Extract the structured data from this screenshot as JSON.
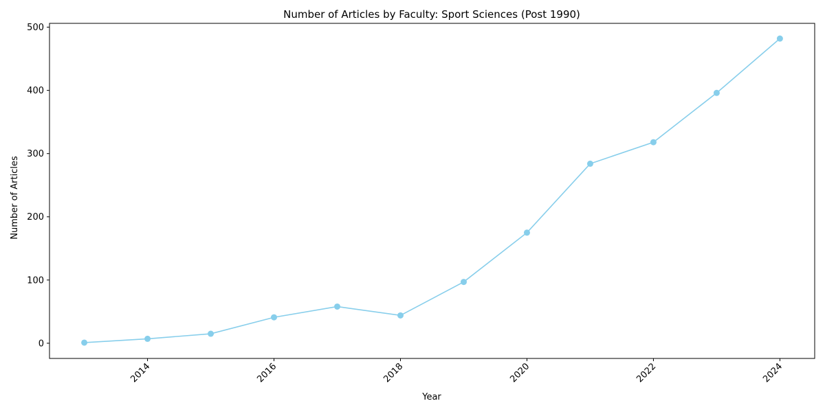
{
  "chart_data": {
    "type": "line",
    "title": "Number of Articles by Faculty: Sport Sciences (Post 1990)",
    "xlabel": "Year",
    "ylabel": "Number of Articles",
    "x": [
      2013,
      2014,
      2015,
      2016,
      2017,
      2018,
      2019,
      2020,
      2021,
      2022,
      2023,
      2024
    ],
    "series": [
      {
        "values": [
          1,
          7,
          15,
          41,
          58,
          44,
          97,
          175,
          284,
          318,
          396,
          482
        ]
      }
    ],
    "xticks": [
      "2014",
      "2016",
      "2018",
      "2020",
      "2022",
      "2024"
    ],
    "yticks": [
      "0",
      "100",
      "200",
      "300",
      "400",
      "500"
    ],
    "xlim": [
      2012.45,
      2024.55
    ],
    "ylim": [
      -24.05,
      506.05
    ],
    "xtick_rotation": 45,
    "grid": false,
    "line_color": "#87CEEB",
    "marker": "circle"
  }
}
